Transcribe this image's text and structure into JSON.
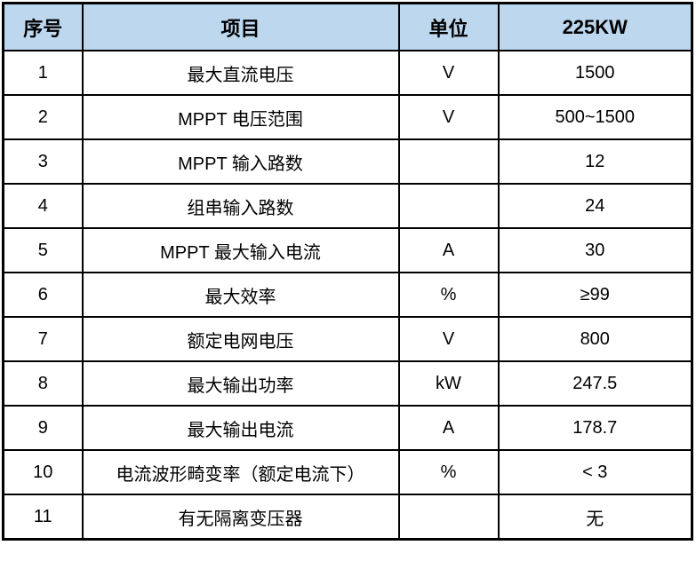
{
  "table": {
    "columns": [
      "序号",
      "项目",
      "单位",
      "225KW"
    ],
    "rows": [
      [
        "1",
        "最大直流电压",
        "V",
        "1500"
      ],
      [
        "2",
        "MPPT 电压范围",
        "V",
        "500~1500"
      ],
      [
        "3",
        "MPPT 输入路数",
        "",
        "12"
      ],
      [
        "4",
        "组串输入路数",
        "",
        "24"
      ],
      [
        "5",
        "MPPT 最大输入电流",
        "A",
        "30"
      ],
      [
        "6",
        "最大效率",
        "%",
        "≥99"
      ],
      [
        "7",
        "额定电网电压",
        "V",
        "800"
      ],
      [
        "8",
        "最大输出功率",
        "kW",
        "247.5"
      ],
      [
        "9",
        "最大输出电流",
        "A",
        "178.7"
      ],
      [
        "10",
        "电流波形畸变率（额定电流下）",
        "%",
        "< 3"
      ],
      [
        "11",
        "有无隔离变压器",
        "",
        "无"
      ]
    ],
    "colors": {
      "header_bg": "#BDD7EE",
      "border": "#000000",
      "text": "#000000",
      "row_bg": "#FFFFFF"
    }
  }
}
